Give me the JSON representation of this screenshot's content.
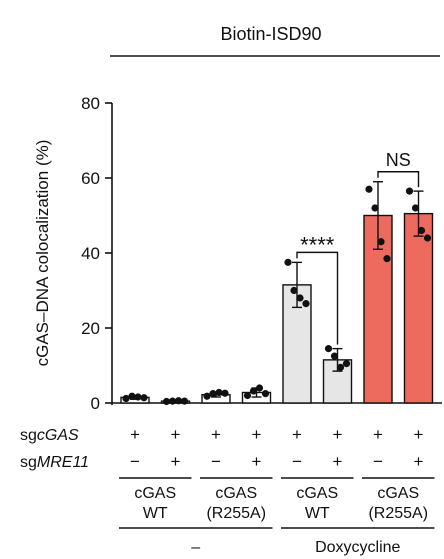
{
  "chart_data": {
    "type": "bar",
    "title": "Biotin-ISD90",
    "ylabel": "cGAS–DNA colocalization (%)",
    "ylim": [
      0,
      80
    ],
    "yticks": [
      0,
      20,
      40,
      60,
      80
    ],
    "grid": false,
    "legend": "none",
    "colors": {
      "white": "#ffffff",
      "grey": "#e6e6e6",
      "red": "#ec6a5e",
      "ink": "#111111"
    },
    "categories": [
      {
        "label": "cGAS WT, –",
        "mean": 1.5,
        "sd": 0.5,
        "fill": "white",
        "points": [
          1.2,
          1.8,
          1.6,
          1.4
        ]
      },
      {
        "label": "cGAS WT, +",
        "mean": 0.5,
        "sd": 0.2,
        "fill": "white",
        "points": [
          0.4,
          0.5,
          0.6,
          0.5
        ]
      },
      {
        "label": "cGAS (R255A), –",
        "mean": 2.2,
        "sd": 0.6,
        "fill": "white",
        "points": [
          1.8,
          2.5,
          2.8,
          2.6
        ]
      },
      {
        "label": "cGAS (R255A), +",
        "mean": 2.8,
        "sd": 1.2,
        "fill": "white",
        "points": [
          2.0,
          3.2,
          4.0,
          2.5
        ]
      },
      {
        "label": "cGAS WT, –, Dox",
        "mean": 31.5,
        "sd": 6,
        "fill": "grey",
        "points": [
          37.5,
          30,
          28,
          26.5
        ]
      },
      {
        "label": "cGAS WT, +, Dox",
        "mean": 11.5,
        "sd": 3,
        "fill": "grey",
        "points": [
          14.5,
          12.5,
          9.5,
          10.5
        ]
      },
      {
        "label": "cGAS (R255A), –, Dox",
        "mean": 50,
        "sd": 9,
        "fill": "red",
        "points": [
          57,
          52,
          43,
          38.5
        ]
      },
      {
        "label": "cGAS (R255A), +, Dox",
        "mean": 50.5,
        "sd": 6,
        "fill": "red",
        "points": [
          56.5,
          52,
          46,
          44
        ]
      }
    ],
    "significance": [
      {
        "from": 4,
        "to": 5,
        "text": "****"
      },
      {
        "from": 6,
        "to": 7,
        "text": "NS"
      }
    ],
    "rows": [
      {
        "label_prefix": "sg",
        "label_gene": "cGAS",
        "values": [
          "+",
          "+",
          "+",
          "+",
          "+",
          "+",
          "+",
          "+"
        ]
      },
      {
        "label_prefix": "sg",
        "label_gene": "MRE11",
        "values": [
          "−",
          "+",
          "−",
          "+",
          "−",
          "+",
          "−",
          "+"
        ]
      }
    ],
    "groups": [
      {
        "line1": "cGAS",
        "line2": "WT"
      },
      {
        "line1": "cGAS",
        "line2": "(R255A)"
      },
      {
        "line1": "cGAS",
        "line2": "WT"
      },
      {
        "line1": "cGAS",
        "line2": "(R255A)"
      }
    ],
    "treatments": [
      {
        "label": "–"
      },
      {
        "label": "Doxycycline"
      }
    ]
  }
}
